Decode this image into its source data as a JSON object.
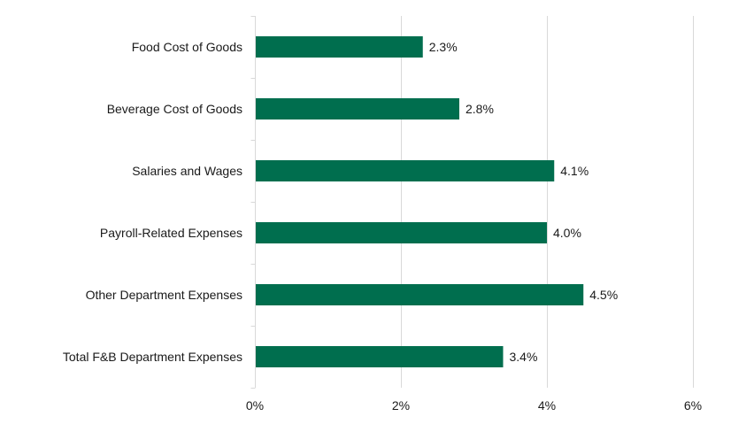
{
  "chart_data": {
    "type": "bar",
    "orientation": "horizontal",
    "categories": [
      "Food Cost of Goods",
      "Beverage Cost of Goods",
      "Salaries and Wages",
      "Payroll-Related Expenses",
      "Other Department Expenses",
      "Total F&B Department Expenses"
    ],
    "values": [
      2.3,
      2.8,
      4.1,
      4.0,
      4.5,
      3.4
    ],
    "data_labels": [
      "2.3%",
      "2.8%",
      "4.1%",
      "4.0%",
      "4.5%",
      "3.4%"
    ],
    "x_ticks": [
      0,
      2,
      4,
      6
    ],
    "x_tick_labels": [
      "0%",
      "2%",
      "4%",
      "6%"
    ],
    "xlim": [
      0,
      6
    ],
    "grid": true,
    "legend": "none",
    "bar_color": "#006e4e"
  }
}
